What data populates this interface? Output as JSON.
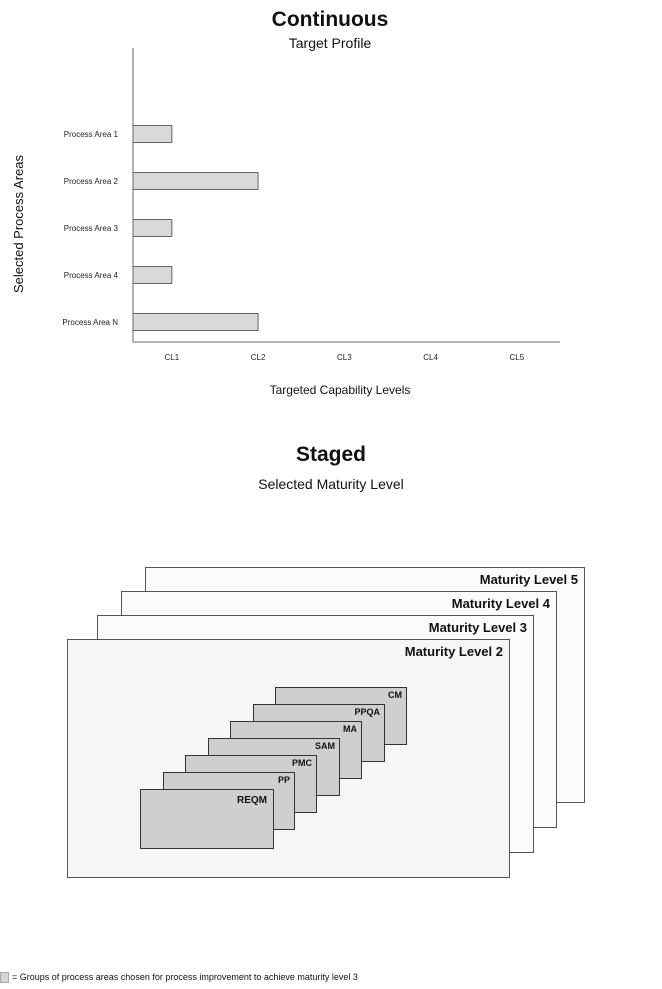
{
  "continuous": {
    "title": "Continuous",
    "subtitle": "Target Profile"
  },
  "chart_data": {
    "type": "bar",
    "orientation": "horizontal",
    "title": "Continuous",
    "subtitle": "Target Profile",
    "xlabel": "Targeted Capability Levels",
    "ylabel": "Selected Process Areas",
    "categories": [
      "Process Area 1",
      "Process Area 2",
      "Process Area 3",
      "Process Area 4",
      "Process Area N"
    ],
    "x_ticks": [
      "CL1",
      "CL2",
      "CL3",
      "CL4",
      "CL5"
    ],
    "values": [
      1,
      2,
      1,
      1,
      2
    ],
    "xlim": [
      0.55,
      5.5
    ],
    "bar_color": "#d9d9d9",
    "grid": false
  },
  "staged": {
    "title": "Staged",
    "subtitle": "Selected Maturity Level",
    "levels": [
      {
        "label": "Maturity Level 5"
      },
      {
        "label": "Maturity Level 4"
      },
      {
        "label": "Maturity Level 3"
      },
      {
        "label": "Maturity Level 2"
      }
    ],
    "process_areas": [
      {
        "label": "CM"
      },
      {
        "label": "PPQA"
      },
      {
        "label": "MA"
      },
      {
        "label": "SAM"
      },
      {
        "label": "PMC"
      },
      {
        "label": "PP"
      },
      {
        "label": "REQM"
      }
    ]
  },
  "legend": {
    "text": "= Groups of process areas chosen for process improvement to achieve maturity level 3",
    "swatch_color": "#d6d6d6"
  }
}
